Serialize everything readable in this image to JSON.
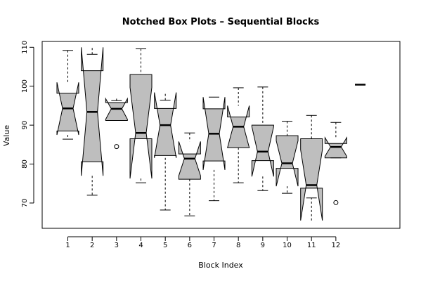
{
  "chart_data": {
    "type": "notched-boxplot",
    "title": "Notched Box Plots – Sequential Blocks",
    "xlabel": "Block Index",
    "ylabel": "Value",
    "ylim": [
      63.5,
      111.5
    ],
    "yticks": [
      70,
      80,
      90,
      100,
      110
    ],
    "grid": false,
    "x_positions": [
      1,
      2,
      3,
      4,
      5,
      6,
      7,
      8,
      9,
      10,
      11,
      12
    ],
    "boxes": [
      {
        "x": 1,
        "label": "1",
        "whisker_low": 86.4,
        "q1": 88.5,
        "median": 94.3,
        "q3": 98.2,
        "whisker_high": 109.2,
        "notch_low": 87.5,
        "notch_high": 101.0,
        "outliers": []
      },
      {
        "x": 2,
        "label": "2",
        "whisker_low": 72.0,
        "q1": 80.6,
        "median": 93.4,
        "q3": 104.0,
        "whisker_high": 108.2,
        "notch_low": 77.0,
        "notch_high": 110.0,
        "outliers": []
      },
      {
        "x": 3,
        "label": "3",
        "whisker_low": 91.2,
        "q1": 91.2,
        "median": 94.2,
        "q3": 95.8,
        "whisker_high": 96.3,
        "notch_low": 91.5,
        "notch_high": 96.8,
        "outliers": [
          84.5
        ]
      },
      {
        "x": 4,
        "label": "4",
        "whisker_low": 75.2,
        "q1": 86.5,
        "median": 88.0,
        "q3": 103.0,
        "whisker_high": 109.6,
        "notch_low": 76.3,
        "notch_high": 99.7,
        "outliers": []
      },
      {
        "x": 5,
        "label": "5",
        "whisker_low": 68.2,
        "q1": 82.2,
        "median": 90.0,
        "q3": 94.3,
        "whisker_high": 96.4,
        "notch_low": 81.6,
        "notch_high": 98.4,
        "outliers": []
      },
      {
        "x": 6,
        "label": "6",
        "whisker_low": 66.7,
        "q1": 76.1,
        "median": 81.4,
        "q3": 82.6,
        "whisker_high": 88.0,
        "notch_low": 77.0,
        "notch_high": 85.8,
        "outliers": []
      },
      {
        "x": 7,
        "label": "7",
        "whisker_low": 70.6,
        "q1": 80.8,
        "median": 87.8,
        "q3": 94.2,
        "whisker_high": 97.2,
        "notch_low": 78.5,
        "notch_high": 97.2,
        "outliers": []
      },
      {
        "x": 8,
        "label": "8",
        "whisker_low": 75.2,
        "q1": 84.2,
        "median": 89.6,
        "q3": 92.1,
        "whisker_high": 99.6,
        "notch_low": 84.2,
        "notch_high": 95.0,
        "outliers": []
      },
      {
        "x": 9,
        "label": "9",
        "whisker_low": 73.2,
        "q1": 80.9,
        "median": 83.2,
        "q3": 90.0,
        "whisker_high": 99.8,
        "notch_low": 76.8,
        "notch_high": 89.6,
        "outliers": []
      },
      {
        "x": 10,
        "label": "10",
        "whisker_low": 72.5,
        "q1": 78.9,
        "median": 80.2,
        "q3": 87.3,
        "whisker_high": 91.0,
        "notch_low": 74.3,
        "notch_high": 86.0,
        "outliers": []
      },
      {
        "x": 11,
        "label": "11",
        "whisker_low": 71.3,
        "q1": 73.8,
        "median": 74.6,
        "q3": 86.5,
        "whisker_high": 92.5,
        "notch_low": 65.5,
        "notch_high": 83.7,
        "outliers": []
      },
      {
        "x": 12,
        "label": "12",
        "whisker_low": 81.6,
        "q1": 81.6,
        "median": 84.4,
        "q3": 85.3,
        "whisker_high": 90.7,
        "notch_low": 82.0,
        "notch_high": 86.8,
        "outliers": [
          70.1
        ]
      },
      {
        "x": 13,
        "label": "",
        "whisker_low": 100.4,
        "q1": 100.4,
        "median": 100.4,
        "q3": 100.4,
        "whisker_high": 100.4,
        "notch_low": 100.4,
        "notch_high": 100.4,
        "outliers": []
      }
    ],
    "colors": {
      "box_fill": "#bebebe",
      "stroke": "#000000"
    }
  }
}
